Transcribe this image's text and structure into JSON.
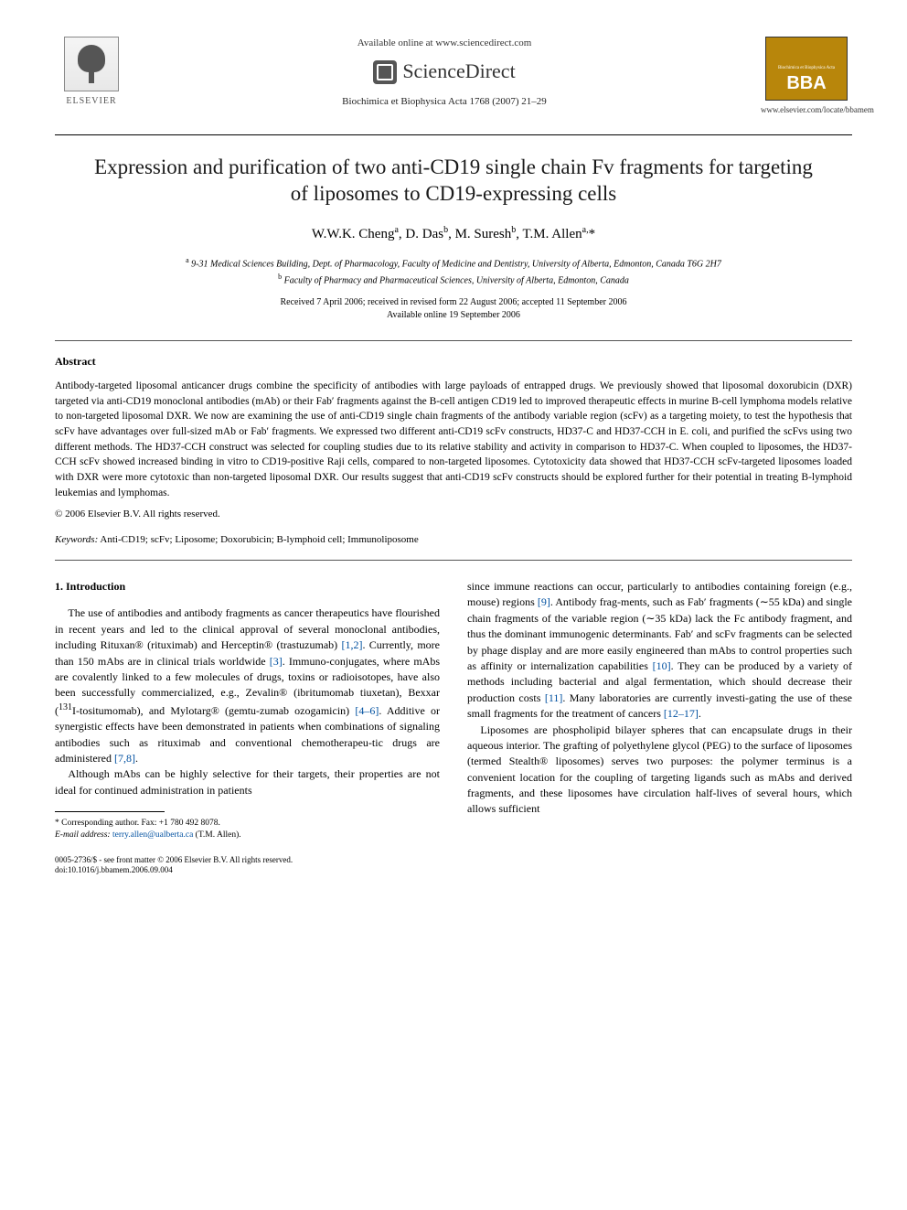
{
  "header": {
    "elsevier_label": "ELSEVIER",
    "available_online": "Available online at www.sciencedirect.com",
    "sciencedirect": "ScienceDirect",
    "journal_ref": "Biochimica et Biophysica Acta 1768 (2007) 21–29",
    "bba_big": "BBA",
    "bba_sub_top": "Biochimica et Biophysica Acta",
    "bba_url": "www.elsevier.com/locate/bbamem"
  },
  "title": "Expression and purification of two anti-CD19 single chain Fv fragments for targeting of liposomes to CD19-expressing cells",
  "authors_html": "W.W.K. Cheng <sup>a</sup>, D. Das <sup>b</sup>, M. Suresh <sup>b</sup>, T.M. Allen <sup>a,</sup>*",
  "affiliations": {
    "a": "9-31 Medical Sciences Building, Dept. of Pharmacology, Faculty of Medicine and Dentistry, University of Alberta, Edmonton, Canada T6G 2H7",
    "b": "Faculty of Pharmacy and Pharmaceutical Sciences, University of Alberta, Edmonton, Canada"
  },
  "dates": {
    "received": "Received 7 April 2006; received in revised form 22 August 2006; accepted 11 September 2006",
    "online": "Available online 19 September 2006"
  },
  "abstract": {
    "heading": "Abstract",
    "body": "Antibody-targeted liposomal anticancer drugs combine the specificity of antibodies with large payloads of entrapped drugs. We previously showed that liposomal doxorubicin (DXR) targeted via anti-CD19 monoclonal antibodies (mAb) or their Fab′ fragments against the B-cell antigen CD19 led to improved therapeutic effects in murine B-cell lymphoma models relative to non-targeted liposomal DXR. We now are examining the use of anti-CD19 single chain fragments of the antibody variable region (scFv) as a targeting moiety, to test the hypothesis that scFv have advantages over full-sized mAb or Fab′ fragments. We expressed two different anti-CD19 scFv constructs, HD37-C and HD37-CCH in E. coli, and purified the scFvs using two different methods. The HD37-CCH construct was selected for coupling studies due to its relative stability and activity in comparison to HD37-C. When coupled to liposomes, the HD37-CCH scFv showed increased binding in vitro to CD19-positive Raji cells, compared to non-targeted liposomes. Cytotoxicity data showed that HD37-CCH scFv-targeted liposomes loaded with DXR were more cytotoxic than non-targeted liposomal DXR. Our results suggest that anti-CD19 scFv constructs should be explored further for their potential in treating B-lymphoid leukemias and lymphomas.",
    "copyright": "© 2006 Elsevier B.V. All rights reserved."
  },
  "keywords": {
    "label": "Keywords:",
    "text": "Anti-CD19; scFv; Liposome; Doxorubicin; B-lymphoid cell; Immunoliposome"
  },
  "intro": {
    "heading": "1. Introduction",
    "col1_p1": "The use of antibodies and antibody fragments as cancer therapeutics have flourished in recent years and led to the clinical approval of several monoclonal antibodies, including Rituxan® (rituximab) and Herceptin® (trastuzumab) [1,2]. Currently, more than 150 mAbs are in clinical trials worldwide [3]. Immuno-conjugates, where mAbs are covalently linked to a few molecules of drugs, toxins or radioisotopes, have also been successfully commercialized, e.g., Zevalin® (ibritumomab tiuxetan), Bexxar (¹³¹I-tositumomab), and Mylotarg® (gemtuzumab ozogamicin) [4–6]. Additive or synergistic effects have been demonstrated in patients when combinations of signaling antibodies such as rituximab and conventional chemotherapeutic drugs are administered [7,8].",
    "col1_p2": "Although mAbs can be highly selective for their targets, their properties are not ideal for continued administration in patients",
    "col2_p1": "since immune reactions can occur, particularly to antibodies containing foreign (e.g., mouse) regions [9]. Antibody fragments, such as Fab′ fragments (∼55 kDa) and single chain fragments of the variable region (∼35 kDa) lack the Fc antibody fragment, and thus the dominant immunogenic determinants. Fab′ and scFv fragments can be selected by phage display and are more easily engineered than mAbs to control properties such as affinity or internalization capabilities [10]. They can be produced by a variety of methods including bacterial and algal fermentation, which should decrease their production costs [11]. Many laboratories are currently investigating the use of these small fragments for the treatment of cancers [12–17].",
    "col2_p2": "Liposomes are phospholipid bilayer spheres that can encapsulate drugs in their aqueous interior. The grafting of polyethylene glycol (PEG) to the surface of liposomes (termed Stealth® liposomes) serves two purposes: the polymer terminus is a convenient location for the coupling of targeting ligands such as mAbs and derived fragments, and these liposomes have circulation half-lives of several hours, which allows sufficient"
  },
  "footnotes": {
    "corresponding": "* Corresponding author. Fax: +1 780 492 8078.",
    "email_label": "E-mail address:",
    "email": "terry.allen@ualberta.ca",
    "email_name": "(T.M. Allen)."
  },
  "bottom": {
    "line1": "0005-2736/$ - see front matter © 2006 Elsevier B.V. All rights reserved.",
    "line2": "doi:10.1016/j.bbamem.2006.09.004"
  },
  "ref_color": "#0050a0"
}
